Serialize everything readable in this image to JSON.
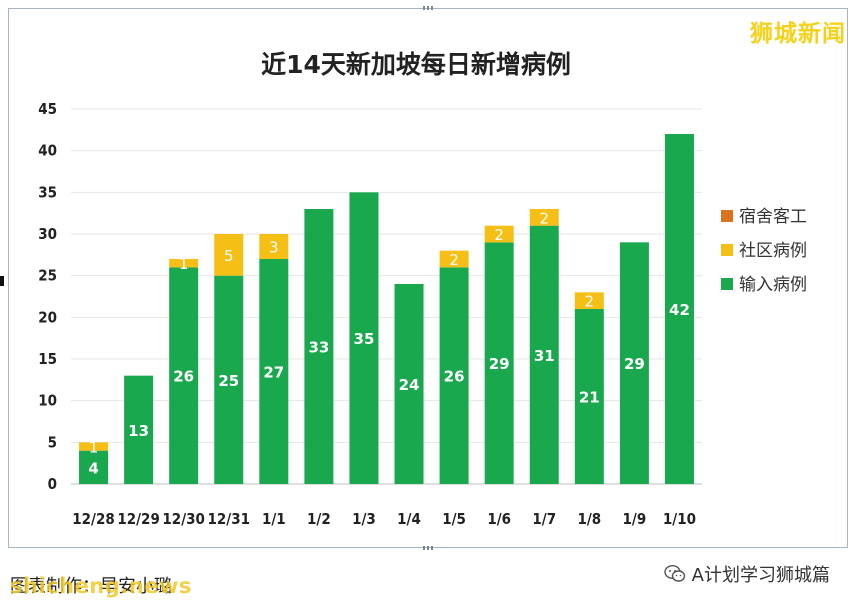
{
  "watermark": {
    "brand": "狮城新闻",
    "source": "shicheng.news",
    "wechat": "A计划学习狮城篇"
  },
  "caption": "图表制作：早安小璐",
  "icons": {
    "wechat": "wechat-icon"
  },
  "chart_data": {
    "type": "bar",
    "stacked": true,
    "title": "近14天新加坡每日新增病例",
    "categories": [
      "12/28",
      "12/29",
      "12/30",
      "12/31",
      "1/1",
      "1/2",
      "1/3",
      "1/4",
      "1/5",
      "1/6",
      "1/7",
      "1/8",
      "1/9",
      "1/10"
    ],
    "ylim": [
      0,
      45
    ],
    "yticks": [
      0,
      5,
      10,
      15,
      20,
      25,
      30,
      35,
      40,
      45
    ],
    "grid": true,
    "legend_position": "right",
    "series": [
      {
        "name": "输入病例",
        "color": "#1aa84f",
        "values": [
          4,
          13,
          26,
          25,
          27,
          33,
          35,
          24,
          26,
          29,
          31,
          21,
          29,
          42
        ]
      },
      {
        "name": "社区病例",
        "color": "#f5bf16",
        "values": [
          1,
          0,
          1,
          5,
          3,
          0,
          0,
          0,
          2,
          2,
          2,
          2,
          0,
          0
        ]
      },
      {
        "name": "宿舍客工",
        "color": "#d9731f",
        "values": [
          0,
          0,
          0,
          0,
          0,
          0,
          0,
          0,
          0,
          0,
          0,
          0,
          0,
          0
        ]
      }
    ],
    "legend_order": [
      "宿舍客工",
      "社区病例",
      "输入病例"
    ]
  }
}
